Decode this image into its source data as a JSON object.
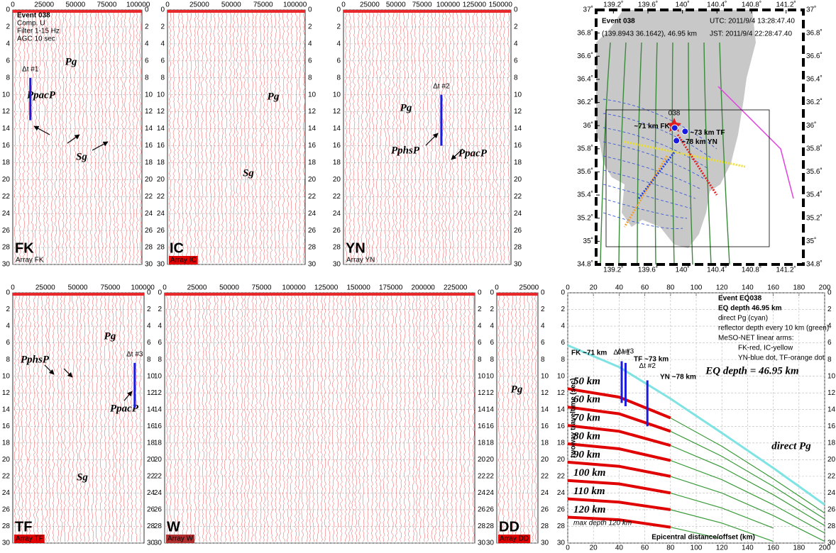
{
  "chart_data": [
    {
      "type": "seismic",
      "label": "FK",
      "array_label": "Array FK",
      "tag_color": "#e00000",
      "notes": [
        "Event 038",
        "Comp. U",
        "Filter 1-15 Hz",
        "AGC 10 sec"
      ],
      "xlim": [
        0,
        103000
      ],
      "xticks": [
        0,
        25000,
        50000,
        75000,
        100000
      ],
      "ylim": [
        0,
        30
      ],
      "y_inverted": true,
      "yticks": [
        0,
        2,
        4,
        6,
        8,
        10,
        12,
        14,
        16,
        18,
        20,
        22,
        24,
        26,
        28,
        30
      ],
      "trace_color": "#e8282a",
      "annotations": [
        "Pg",
        "PpacP",
        "Sg"
      ],
      "markers": [
        {
          "label": "Δt #1",
          "x": 14000,
          "from": 8,
          "to": 13
        }
      ],
      "marker_color": "#1a1ae0"
    },
    {
      "type": "seismic",
      "label": "IC",
      "array_label": "Array IC",
      "tag_color": "#ffffff",
      "tag_background": "#e00000",
      "xlim": [
        0,
        108000
      ],
      "xticks": [
        0,
        25000,
        50000,
        75000,
        100000
      ],
      "ylim": [
        0,
        30
      ],
      "y_inverted": true,
      "yticks": [
        0,
        2,
        4,
        6,
        8,
        10,
        12,
        14,
        16,
        18,
        20,
        22,
        24,
        26,
        28,
        30
      ],
      "trace_color": "#e8282a",
      "annotations": [
        "Pg",
        "Sg"
      ]
    },
    {
      "type": "seismic",
      "label": "YN",
      "array_label": "Array YN",
      "tag_color": "#1a1ae0",
      "xlim": [
        0,
        160000
      ],
      "xticks": [
        0,
        25000,
        50000,
        75000,
        100000,
        125000,
        150000
      ],
      "ylim": [
        0,
        30
      ],
      "y_inverted": true,
      "yticks": [
        0,
        2,
        4,
        6,
        8,
        10,
        12,
        14,
        16,
        18,
        20,
        22,
        24,
        26,
        28,
        30
      ],
      "trace_color": "#e8282a",
      "annotations": [
        "Pg",
        "PphsP",
        "PpacP"
      ],
      "markers": [
        {
          "label": "Δt #2",
          "x": 93500,
          "from": 10,
          "to": 16
        }
      ],
      "marker_color": "#1a1ae0"
    },
    {
      "type": "seismic",
      "label": "TF",
      "array_label": "Array TF",
      "tag_color": "#ffffff",
      "tag_background": "#e00000",
      "xlim": [
        0,
        101000
      ],
      "xticks": [
        0,
        25000,
        50000,
        75000,
        100000
      ],
      "ylim": [
        0,
        30
      ],
      "y_inverted": true,
      "yticks": [
        0,
        2,
        4,
        6,
        8,
        10,
        12,
        14,
        16,
        18,
        20,
        22,
        24,
        26,
        28,
        30
      ],
      "trace_color": "#e8282a",
      "annotations": [
        "Pg",
        "PphsP",
        "PpacP",
        "Sg"
      ],
      "markers": [
        {
          "label": "Δt #3",
          "x": 93800,
          "from": 8.4,
          "to": 13.8
        }
      ],
      "marker_color": "#1a1ae0"
    },
    {
      "type": "seismic",
      "label": "W",
      "array_label": "Array W",
      "tag_color": "#ffffff",
      "tag_background": "#b03030",
      "xlim": [
        0,
        240000
      ],
      "xticks": [
        0,
        25000,
        50000,
        75000,
        100000,
        125000,
        150000,
        175000,
        200000,
        225000
      ],
      "ylim": [
        0,
        30
      ],
      "y_inverted": true,
      "yticks": [
        0,
        2,
        4,
        6,
        8,
        10,
        12,
        14,
        16,
        18,
        20,
        22,
        24,
        26,
        28,
        30
      ],
      "trace_color": "#e8282a"
    },
    {
      "type": "seismic",
      "label": "DD",
      "array_label": "Array DD",
      "tag_color": "#ffffff",
      "tag_background": "#e00000",
      "xlim": [
        0,
        32000
      ],
      "xticks": [
        0,
        25000
      ],
      "ylim": [
        0,
        30
      ],
      "y_inverted": true,
      "yticks": [
        0,
        2,
        4,
        6,
        8,
        10,
        12,
        14,
        16,
        18,
        20,
        22,
        24,
        26,
        28,
        30
      ],
      "trace_color": "#e8282a",
      "annotations": [
        "Pg"
      ]
    },
    {
      "type": "map",
      "notes": [
        "Event 038",
        "(139.8943 36.1642), 46.95 km",
        "UTC: 2011/9/4  13:28:47.40",
        "JST: 2011/9/4  22:28:47.40"
      ],
      "xlim": [
        139.0,
        141.4
      ],
      "xticks": [
        {
          "value": 139.2,
          "label": "139.2˚"
        },
        {
          "value": 139.6,
          "label": "139.6˚"
        },
        {
          "value": 140,
          "label": "140˚"
        },
        {
          "value": 140.4,
          "label": "140.4˚"
        },
        {
          "value": 140.8,
          "label": "140.8˚"
        },
        {
          "value": 141.2,
          "label": "141.2˚"
        }
      ],
      "ylim": [
        34.8,
        37
      ],
      "yticks": [
        {
          "value": 34.8,
          "label": "34.8˚"
        },
        {
          "value": 35,
          "label": "35˚"
        },
        {
          "value": 35.2,
          "label": "35.2˚"
        },
        {
          "value": 35.4,
          "label": "35.4˚"
        },
        {
          "value": 35.6,
          "label": "35.6˚"
        },
        {
          "value": 35.8,
          "label": "35.8˚"
        },
        {
          "value": 36,
          "label": "36˚"
        },
        {
          "value": 36.2,
          "label": "36.2˚"
        },
        {
          "value": 36.4,
          "label": "36.4˚"
        },
        {
          "value": 36.6,
          "label": "36.6˚"
        },
        {
          "value": 36.8,
          "label": "36.8˚"
        },
        {
          "value": 37,
          "label": "37˚"
        }
      ],
      "epicenter_label": "038",
      "stations": [
        {
          "label": "~71 km FK",
          "lon": 139.91,
          "lat": 35.98,
          "color": "#1a1ae0"
        },
        {
          "label": "~73 km TF",
          "lon": 140.03,
          "lat": 35.95,
          "color": "#1a1ae0"
        },
        {
          "label": "~78 km YN",
          "lon": 139.93,
          "lat": 35.87,
          "color": "#1a1ae0"
        }
      ]
    },
    {
      "type": "line",
      "xlabel": "Epicentral distance/offset (km)",
      "ylabel": "twoway traveltime (sec)",
      "notes": [
        "Event EQ038",
        "EQ depth 46.95 km",
        "direct Pg (cyan)",
        "reflector depth every 10 km (green)",
        "MeSO-NET linear arms:",
        "FK-red, IC-yellow",
        "YN-blue dot, TF-orange dot"
      ],
      "headline": "EQ depth = 46.95 km",
      "footnote": "max depth 120 km",
      "xlim": [
        0,
        200
      ],
      "xticks": [
        0,
        20,
        40,
        60,
        80,
        100,
        120,
        140,
        160,
        180,
        200
      ],
      "ylim": [
        0,
        30
      ],
      "y_inverted": true,
      "yticks": [
        0,
        2,
        4,
        6,
        8,
        10,
        12,
        14,
        16,
        18,
        20,
        22,
        24,
        26,
        28,
        30
      ],
      "x": [
        0,
        40,
        80,
        120,
        160,
        200
      ],
      "highlight_color": "#e00000",
      "highlight_points": 3,
      "series": [
        {
          "name": "direct Pg",
          "color": "#7fe3e3",
          "values": [
            6.3,
            8.9,
            12.7,
            16.8,
            21.0,
            25.4
          ]
        },
        {
          "name": "50 km",
          "color": "#3a9a3a",
          "values": [
            11.5,
            12.5,
            15.0,
            18.4,
            22.3,
            26.4
          ]
        },
        {
          "name": "60 km",
          "color": "#3a9a3a",
          "values": [
            13.7,
            14.5,
            16.6,
            19.6,
            23.2,
            27.1
          ]
        },
        {
          "name": "70 km",
          "color": "#3a9a3a",
          "values": [
            15.9,
            16.6,
            18.3,
            20.9,
            24.2,
            27.9
          ]
        },
        {
          "name": "80 km",
          "color": "#3a9a3a",
          "values": [
            18.1,
            18.7,
            20.1,
            22.4,
            25.4,
            28.8
          ]
        },
        {
          "name": "90 km",
          "color": "#3a9a3a",
          "values": [
            20.3,
            20.8,
            22.0,
            24.0,
            26.7,
            29.8
          ]
        },
        {
          "name": "100 km",
          "color": "#3a9a3a",
          "values": [
            22.5,
            22.9,
            24.0,
            25.8,
            28.2,
            null
          ]
        },
        {
          "name": "110 km",
          "color": "#3a9a3a",
          "values": [
            24.7,
            25.1,
            26.0,
            27.6,
            29.8,
            null
          ]
        },
        {
          "name": "120 km",
          "color": "#3a9a3a",
          "values": [
            26.9,
            27.2,
            28.1,
            29.5,
            null,
            null
          ]
        }
      ],
      "stations": [
        "FK ~71 km",
        "TF ~73 km",
        "YN ~78 km"
      ],
      "markers": [
        {
          "label": "Δt #1",
          "x": 42,
          "from": 8.2,
          "to": 13.2
        },
        {
          "label": "Δt #3",
          "x": 45,
          "from": 8.4,
          "to": 13.6
        },
        {
          "label": "Δt #2",
          "x": 62,
          "from": 10.5,
          "to": 16
        }
      ],
      "marker_color": "#1a1ae0"
    }
  ]
}
